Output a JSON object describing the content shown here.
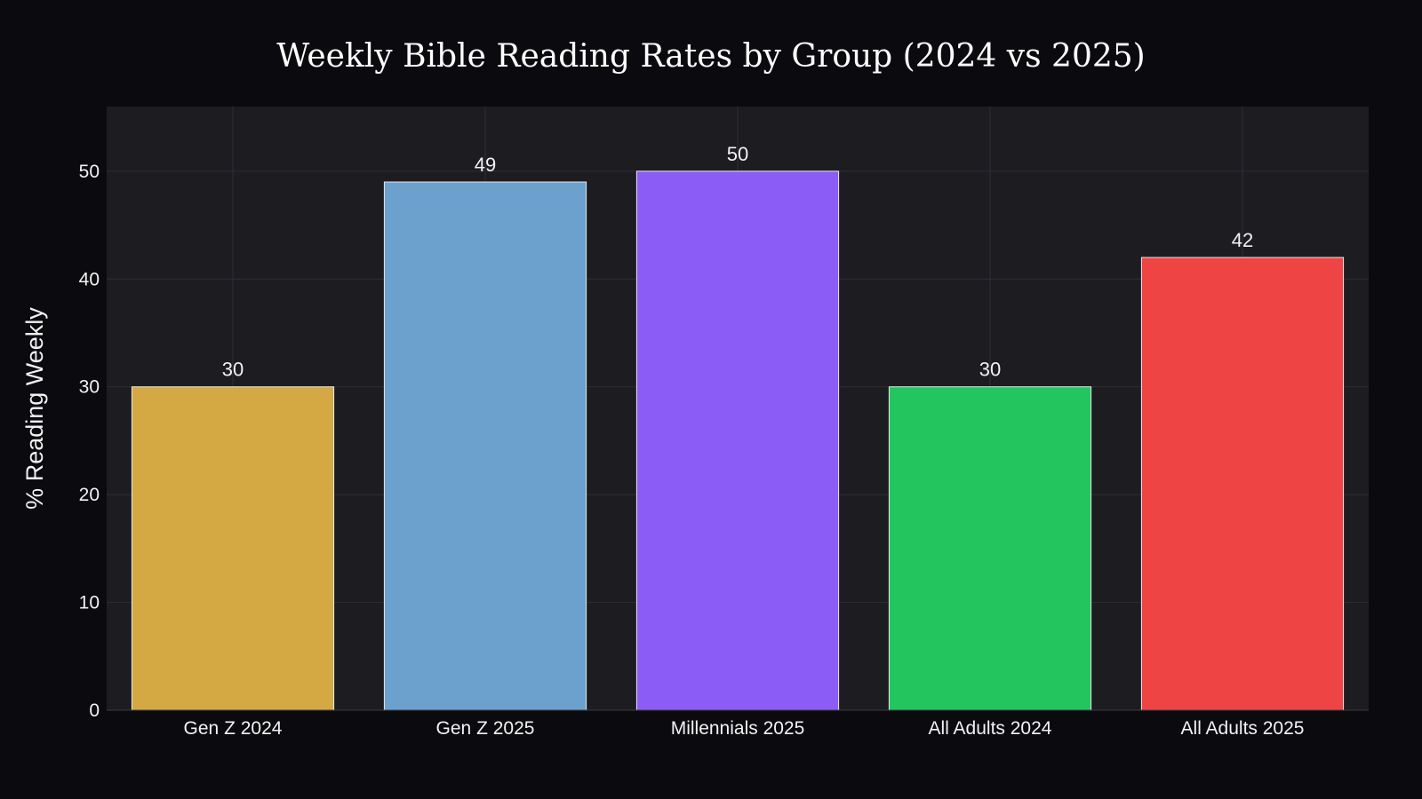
{
  "chart_data": {
    "type": "bar",
    "title": "Weekly Bible Reading Rates by Group (2024 vs 2025)",
    "xlabel": "",
    "ylabel": "% Reading Weekly",
    "categories": [
      "Gen Z 2024",
      "Gen Z 2025",
      "Millennials 2025",
      "All Adults 2024",
      "All Adults 2025"
    ],
    "values": [
      30,
      49,
      50,
      30,
      42
    ],
    "data_labels": [
      "30",
      "49",
      "50",
      "30",
      "42"
    ],
    "colors": [
      "#d4a843",
      "#6ca0cd",
      "#8b5cf6",
      "#22c55e",
      "#ef4444"
    ],
    "ylim": [
      0,
      56
    ],
    "yticks": [
      0,
      10,
      20,
      30,
      40,
      50
    ],
    "ytick_labels": [
      "0",
      "10",
      "20",
      "30",
      "40",
      "50"
    ],
    "grid": true,
    "legend": "none",
    "theme": {
      "page_background": "#0b0b0f",
      "plot_background": "#1c1c21",
      "grid_color": "#2e2e35",
      "bar_outline": "#e8e8e8"
    }
  }
}
